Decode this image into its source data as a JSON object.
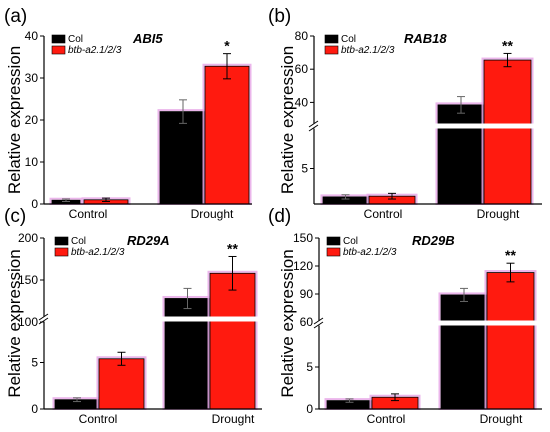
{
  "colors": {
    "col": "#000000",
    "mutant": "#ff1a0f",
    "halo": "#e8a9e8"
  },
  "chart_data": [
    {
      "panel": "(a)",
      "type": "bar",
      "title": "ABI5",
      "ylabel": "Relative expression",
      "categories": [
        "Control",
        "Drought"
      ],
      "series": [
        {
          "name": "Col",
          "values": [
            0.9,
            22.0
          ],
          "errors": [
            0.3,
            2.8
          ]
        },
        {
          "name": "btb-a2.1/2/3",
          "values": [
            1.0,
            32.8
          ],
          "errors": [
            0.4,
            3.0
          ]
        }
      ],
      "ylim": [
        0,
        40
      ],
      "yticks": [
        "0",
        "10",
        "20",
        "30",
        "40"
      ],
      "significance": [
        "",
        "*"
      ],
      "broken_axis": false,
      "legend": "top-left"
    },
    {
      "panel": "(b)",
      "type": "bar",
      "title": "RAB18",
      "ylabel": "Relative expression",
      "categories": [
        "Control",
        "Drought"
      ],
      "series": [
        {
          "name": "Col",
          "values": [
            1.0,
            38.5
          ],
          "errors": [
            0.3,
            5.0
          ]
        },
        {
          "name": "btb-a2.1/2/3",
          "values": [
            1.1,
            65.5
          ],
          "errors": [
            0.4,
            4.0
          ]
        }
      ],
      "lower_ylim": [
        0,
        10
      ],
      "lower_yticks": [
        "5"
      ],
      "upper_ylim": [
        30,
        80
      ],
      "upper_yticks": [
        "40",
        "60",
        "80"
      ],
      "significance": [
        "",
        "**"
      ],
      "broken_axis": true,
      "legend": "top-left"
    },
    {
      "panel": "(c)",
      "type": "bar",
      "title": "RD29A",
      "ylabel": "Relative expression",
      "categories": [
        "Control",
        "Drought"
      ],
      "series": [
        {
          "name": "Col",
          "values": [
            1.0,
            128.0
          ],
          "errors": [
            0.2,
            12.0
          ]
        },
        {
          "name": "btb-a2.1/2/3",
          "values": [
            5.4,
            158.0
          ],
          "errors": [
            0.7,
            20.0
          ]
        }
      ],
      "lower_ylim": [
        0,
        10
      ],
      "lower_yticks": [
        "0",
        "5"
      ],
      "upper_ylim": [
        100,
        200
      ],
      "upper_yticks": [
        "100",
        "150",
        "200"
      ],
      "significance": [
        "",
        "**"
      ],
      "broken_axis": true,
      "legend": "top-left"
    },
    {
      "panel": "(d)",
      "type": "bar",
      "title": "RD29B",
      "ylabel": "Relative expression",
      "categories": [
        "Control",
        "Drought"
      ],
      "series": [
        {
          "name": "Col",
          "values": [
            1.0,
            89.0
          ],
          "errors": [
            0.2,
            7.0
          ]
        },
        {
          "name": "btb-a2.1/2/3",
          "values": [
            1.4,
            113.0
          ],
          "errors": [
            0.4,
            10.0
          ]
        }
      ],
      "lower_ylim": [
        0,
        10
      ],
      "lower_yticks": [
        "0",
        "5"
      ],
      "upper_ylim": [
        60,
        150
      ],
      "upper_yticks": [
        "60",
        "90",
        "120",
        "150"
      ],
      "significance": [
        "",
        "**"
      ],
      "broken_axis": true,
      "legend": "top-left"
    }
  ]
}
